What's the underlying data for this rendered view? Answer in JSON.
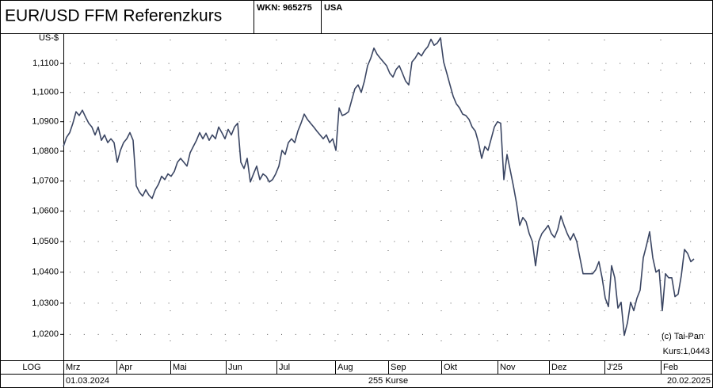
{
  "chart_data": {
    "type": "line",
    "title": "EUR/USD  FFM Referenzkurs",
    "wkn": "WKN: 965275",
    "country": "USA",
    "y_label": "US-$",
    "scale_label": "LOG",
    "start_date": "01.03.2024",
    "end_date": "20.02.2025",
    "count_label": "255 Kurse",
    "copyright": "(c) Tai-Pan",
    "price_label": "Kurs:1,0443",
    "log_scale": true,
    "grid": true,
    "xlim": [
      0,
      199
    ],
    "xticks": [
      {
        "value": 0,
        "label": "Mrz"
      },
      {
        "value": 16.75,
        "label": "Apr"
      },
      {
        "value": 33.75,
        "label": "Mai"
      },
      {
        "value": 51.25,
        "label": "Jun"
      },
      {
        "value": 67.25,
        "label": "Jul"
      },
      {
        "value": 85.75,
        "label": "Aug"
      },
      {
        "value": 102.5,
        "label": "Sep"
      },
      {
        "value": 119.25,
        "label": "Okt"
      },
      {
        "value": 137,
        "label": "Nov"
      },
      {
        "value": 153.25,
        "label": "Dez"
      },
      {
        "value": 170.75,
        "label": "J'25"
      },
      {
        "value": 188.5,
        "label": "Feb"
      }
    ],
    "ylim": [
      1.0118,
      1.1205
    ],
    "yticks": [
      {
        "value": 1.02,
        "label": "1,0200"
      },
      {
        "value": 1.03,
        "label": "1,0300"
      },
      {
        "value": 1.04,
        "label": "1,0400"
      },
      {
        "value": 1.05,
        "label": "1,0500"
      },
      {
        "value": 1.06,
        "label": "1,0600"
      },
      {
        "value": 1.07,
        "label": "1,0700"
      },
      {
        "value": 1.08,
        "label": "1,0800"
      },
      {
        "value": 1.09,
        "label": "1,0900"
      },
      {
        "value": 1.1,
        "label": "1,1000"
      },
      {
        "value": 1.11,
        "label": "1,1100"
      }
    ],
    "series": [
      {
        "name": "EUR/USD",
        "color": "#3b4663",
        "values": [
          1.0816,
          1.0847,
          1.0863,
          1.0895,
          1.0934,
          1.0921,
          1.0939,
          1.0916,
          1.0895,
          1.0882,
          1.0855,
          1.0882,
          1.0837,
          1.0855,
          1.0829,
          1.0842,
          1.0829,
          1.0763,
          1.0803,
          1.0829,
          1.0842,
          1.0863,
          1.0837,
          1.0684,
          1.0663,
          1.065,
          1.0671,
          1.0653,
          1.0642,
          1.0671,
          1.0689,
          1.0716,
          1.0705,
          1.0724,
          1.0716,
          1.0732,
          1.0763,
          1.0776,
          1.0763,
          1.075,
          1.0795,
          1.0816,
          1.0837,
          1.0863,
          1.0842,
          1.0861,
          1.0837,
          1.0855,
          1.0842,
          1.0882,
          1.0863,
          1.0842,
          1.0874,
          1.0855,
          1.0882,
          1.0895,
          1.0763,
          1.0742,
          1.0776,
          1.0697,
          1.0724,
          1.075,
          1.0705,
          1.0724,
          1.0716,
          1.0697,
          1.0705,
          1.0724,
          1.075,
          1.0803,
          1.0789,
          1.0829,
          1.0842,
          1.0829,
          1.0868,
          1.0895,
          1.0926,
          1.0908,
          1.0895,
          1.0882,
          1.0868,
          1.0855,
          1.0842,
          1.0855,
          1.0829,
          1.0842,
          1.0803,
          1.0947,
          1.0921,
          1.0926,
          1.0934,
          1.0974,
          1.1013,
          1.1026,
          1.1,
          1.1039,
          1.1092,
          1.1118,
          1.1153,
          1.1132,
          1.1118,
          1.1105,
          1.1092,
          1.1066,
          1.1053,
          1.1079,
          1.1092,
          1.1066,
          1.1039,
          1.1026,
          1.1105,
          1.1118,
          1.1137,
          1.1126,
          1.1145,
          1.1158,
          1.1184,
          1.1163,
          1.1171,
          1.1189,
          1.1105,
          1.1066,
          1.1026,
          1.0987,
          1.0961,
          1.0947,
          1.0926,
          1.0921,
          1.0908,
          1.0882,
          1.0868,
          1.0829,
          1.0776,
          1.0816,
          1.0803,
          1.0842,
          1.0882,
          1.09,
          1.0895,
          1.0705,
          1.0789,
          1.0737,
          1.0684,
          1.0626,
          1.0553,
          1.0579,
          1.0566,
          1.0526,
          1.05,
          1.0421,
          1.05,
          1.0526,
          1.0539,
          1.0553,
          1.0526,
          1.0513,
          1.0539,
          1.0584,
          1.0553,
          1.0526,
          1.0505,
          1.0526,
          1.05,
          1.0447,
          1.0395,
          1.0395,
          1.0395,
          1.0395,
          1.0408,
          1.0434,
          1.0382,
          1.0316,
          1.0289,
          1.0421,
          1.0382,
          1.0284,
          1.0303,
          1.0197,
          1.0237,
          1.0303,
          1.0276,
          1.0316,
          1.0342,
          1.0447,
          1.0487,
          1.0532,
          1.0447,
          1.04,
          1.0408,
          1.0276,
          1.0395,
          1.0382,
          1.0382,
          1.0321,
          1.0329,
          1.0389,
          1.0474,
          1.0461,
          1.0434,
          1.0443
        ]
      }
    ]
  }
}
